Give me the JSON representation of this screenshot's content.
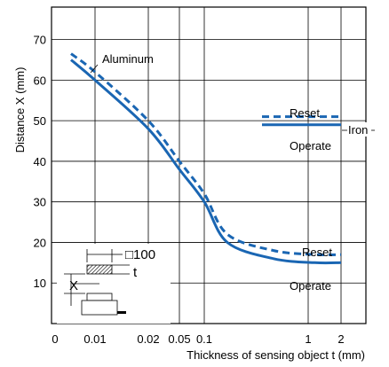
{
  "chart_data": {
    "type": "line",
    "xlabel": "Thickness of sensing object t (mm)",
    "ylabel": "Distance X (mm)",
    "ylim": [
      0,
      78
    ],
    "y_ticks": [
      10,
      20,
      30,
      40,
      50,
      60,
      70
    ],
    "x_ticks": [
      {
        "label": "0",
        "value": 0
      },
      {
        "label": "0.01",
        "value": 0.01
      },
      {
        "label": "0.02",
        "value": 0.02
      },
      {
        "label": "0.05",
        "value": 0.05
      },
      {
        "label": "0.1",
        "value": 0.1
      },
      {
        "label": "1",
        "value": 1
      },
      {
        "label": "2",
        "value": 2
      }
    ],
    "grid": true,
    "line_color": "#1a66b3",
    "series": [
      {
        "name": "Aluminum Operate",
        "style": "solid",
        "x": [
          0.004,
          0.01,
          0.02,
          0.05,
          0.1,
          0.3,
          0.7,
          1.2,
          2.0
        ],
        "y": [
          65,
          60,
          48,
          38,
          30,
          20,
          16,
          15,
          15
        ]
      },
      {
        "name": "Aluminum Reset",
        "style": "dashed",
        "x": [
          0.004,
          0.01,
          0.02,
          0.05,
          0.1,
          0.3,
          0.7,
          1.2,
          2.0
        ],
        "y": [
          66.5,
          62,
          50,
          40,
          32,
          22,
          18,
          17,
          17
        ]
      },
      {
        "name": "Iron Operate",
        "style": "solid",
        "x": [
          0.6,
          2.0
        ],
        "y": [
          49,
          49
        ]
      },
      {
        "name": "Iron Reset",
        "style": "dashed",
        "x": [
          0.6,
          2.0
        ],
        "y": [
          51,
          51
        ]
      }
    ],
    "annotations": {
      "aluminum": "Aluminum",
      "iron": "Iron",
      "iron_reset": "Reset",
      "iron_operate": "Operate",
      "al_reset": "Reset",
      "al_operate": "Operate",
      "inset_size": "□100",
      "inset_t": "t",
      "inset_x": "X"
    }
  }
}
